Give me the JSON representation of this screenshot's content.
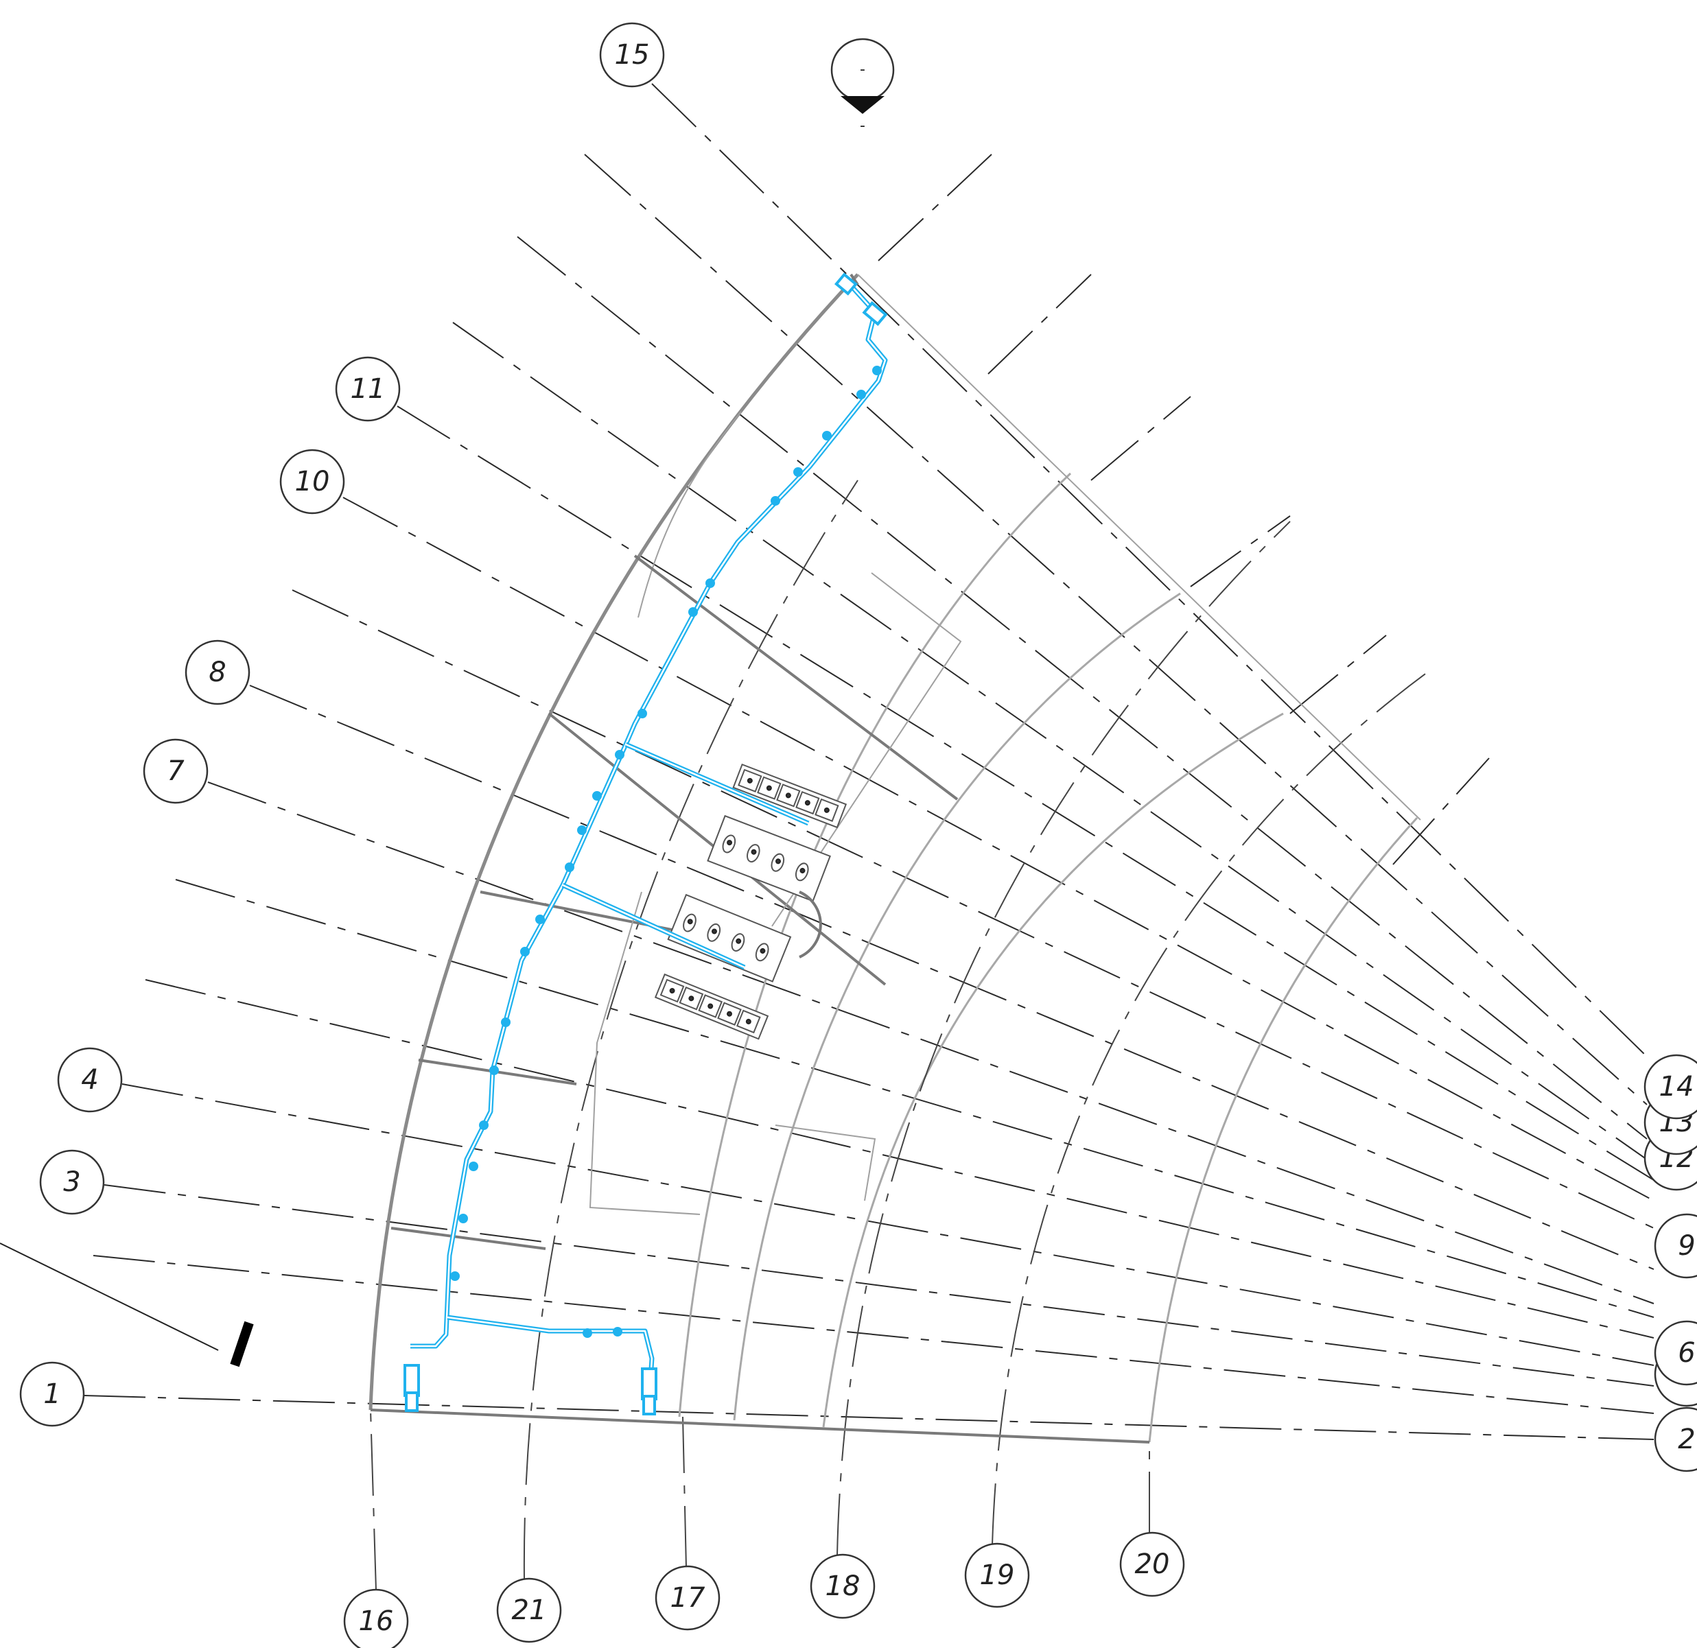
{
  "drawing": {
    "north_marker": {
      "top_label": "-",
      "bottom_label": "-"
    },
    "grid_bubbles": [
      {
        "id": "g1",
        "label": "1"
      },
      {
        "id": "g2",
        "label": "2"
      },
      {
        "id": "g3",
        "label": "3"
      },
      {
        "id": "g4",
        "label": "4"
      },
      {
        "id": "g5",
        "label": "5"
      },
      {
        "id": "g6",
        "label": "6"
      },
      {
        "id": "g7",
        "label": "7"
      },
      {
        "id": "g8",
        "label": "8"
      },
      {
        "id": "g9",
        "label": "9"
      },
      {
        "id": "g10",
        "label": "10"
      },
      {
        "id": "g11",
        "label": "11"
      },
      {
        "id": "g12",
        "label": "12"
      },
      {
        "id": "g13",
        "label": "13"
      },
      {
        "id": "g14",
        "label": "14"
      },
      {
        "id": "g15",
        "label": "15"
      },
      {
        "id": "g16",
        "label": "16"
      },
      {
        "id": "g17",
        "label": "17"
      },
      {
        "id": "g18",
        "label": "18"
      },
      {
        "id": "g19",
        "label": "19"
      },
      {
        "id": "g20",
        "label": "20"
      },
      {
        "id": "g21",
        "label": "21"
      }
    ],
    "colors": {
      "pipe": "#1fb2ee",
      "lines": "#2a2a2a",
      "walls": "#7a7a7a"
    }
  }
}
